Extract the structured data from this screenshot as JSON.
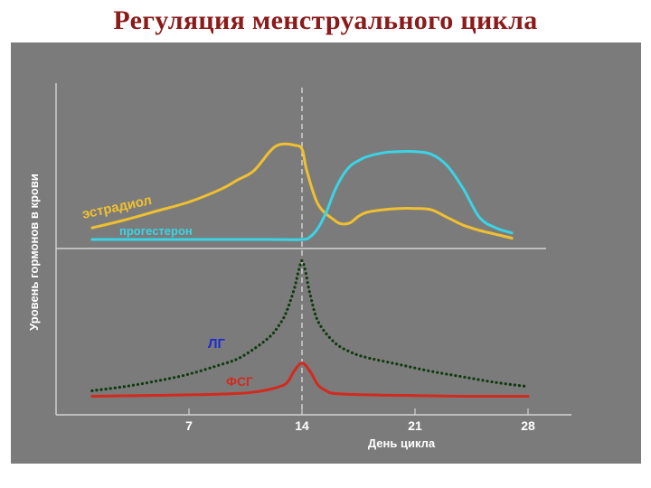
{
  "title": "Регуляция менструального цикла",
  "chart_data": {
    "type": "line",
    "xlabel": "День цикла",
    "ylabel": "Уровень гормонов в крови",
    "xticks": [
      7,
      14,
      21,
      28
    ],
    "xlim": [
      0,
      30
    ],
    "peak_day": 14,
    "grid": false,
    "series": [
      {
        "name": "эстрадиол",
        "panel": "upper",
        "color": "#f0c030",
        "style": "solid",
        "x": [
          1,
          3,
          5,
          7,
          9,
          10,
          11,
          12,
          12.5,
          13,
          13.5,
          14,
          14.3,
          15,
          16,
          16.5,
          17,
          17.5,
          18,
          19,
          20,
          21,
          22,
          23,
          24,
          25,
          26,
          27
        ],
        "y": [
          0.16,
          0.22,
          0.29,
          0.36,
          0.46,
          0.53,
          0.6,
          0.75,
          0.8,
          0.81,
          0.8,
          0.77,
          0.6,
          0.34,
          0.22,
          0.19,
          0.2,
          0.25,
          0.28,
          0.3,
          0.31,
          0.31,
          0.3,
          0.24,
          0.18,
          0.14,
          0.11,
          0.08
        ]
      },
      {
        "name": "прогестерон",
        "panel": "upper",
        "color": "#3ad4e6",
        "style": "solid",
        "x": [
          1,
          4,
          8,
          12,
          14,
          14.5,
          15,
          15.5,
          16,
          16.5,
          17,
          17.5,
          18,
          19,
          20,
          21,
          22,
          23,
          24,
          25,
          26,
          27
        ],
        "y": [
          0.07,
          0.07,
          0.07,
          0.07,
          0.07,
          0.09,
          0.16,
          0.28,
          0.44,
          0.56,
          0.64,
          0.68,
          0.71,
          0.74,
          0.75,
          0.75,
          0.73,
          0.64,
          0.46,
          0.24,
          0.16,
          0.12
        ]
      },
      {
        "name": "ЛГ",
        "panel": "lower",
        "color": "#0f3a0f",
        "style": "dotted",
        "label_color": "#1e2bd0",
        "x": [
          1,
          3,
          5,
          7,
          9,
          10,
          11,
          12,
          12.5,
          13,
          13.5,
          13.8,
          14,
          14.2,
          14.5,
          15,
          16,
          17,
          18,
          20,
          22,
          24,
          26,
          28
        ],
        "y": [
          0.05,
          0.08,
          0.12,
          0.17,
          0.24,
          0.28,
          0.35,
          0.44,
          0.51,
          0.61,
          0.78,
          0.92,
          0.99,
          0.92,
          0.75,
          0.55,
          0.4,
          0.33,
          0.29,
          0.24,
          0.19,
          0.15,
          0.11,
          0.08
        ]
      },
      {
        "name": "ФСГ",
        "panel": "lower",
        "color": "#d22a1e",
        "style": "solid",
        "label_color": "#d22a1e",
        "x": [
          1,
          4,
          7,
          10,
          11,
          12,
          13,
          13.5,
          14,
          14.5,
          15,
          15.5,
          16,
          18,
          21,
          24,
          28
        ],
        "y": [
          0.01,
          0.015,
          0.02,
          0.03,
          0.04,
          0.06,
          0.1,
          0.19,
          0.25,
          0.19,
          0.09,
          0.05,
          0.03,
          0.02,
          0.015,
          0.01,
          0.01
        ]
      }
    ]
  }
}
